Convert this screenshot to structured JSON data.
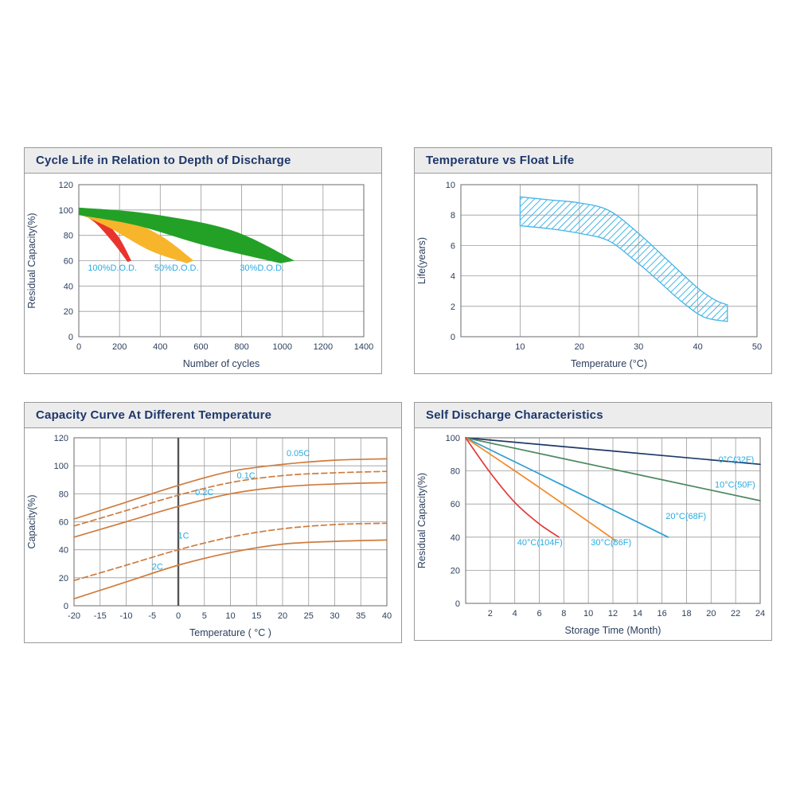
{
  "chart_data": [
    {
      "type": "area",
      "title": "Cycle Life in Relation to Depth of Discharge",
      "xlabel": "Number of cycles",
      "ylabel": "Residual Capacity(%)",
      "xlim": [
        0,
        1400
      ],
      "ylim": [
        0,
        120
      ],
      "xticks": [
        0,
        200,
        400,
        600,
        800,
        1000,
        1200,
        1400
      ],
      "yticks": [
        0,
        20,
        40,
        60,
        80,
        100,
        120
      ],
      "grid": true,
      "label_color": "#29abe2",
      "bands": [
        {
          "name": "100% D.O.D.",
          "color": "#e8342c",
          "upper": [
            [
              0,
              102
            ],
            [
              90,
              96
            ],
            [
              190,
              80
            ],
            [
              258,
              60
            ]
          ],
          "lower": [
            [
              0,
              98
            ],
            [
              80,
              90
            ],
            [
              170,
              74
            ],
            [
              240,
              59
            ]
          ]
        },
        {
          "name": "50% D.O.D.",
          "color": "#f7b52c",
          "upper": [
            [
              0,
              102
            ],
            [
              180,
              96
            ],
            [
              400,
              80
            ],
            [
              565,
              60
            ]
          ],
          "lower": [
            [
              0,
              97
            ],
            [
              150,
              86
            ],
            [
              350,
              68
            ],
            [
              530,
              58
            ]
          ]
        },
        {
          "name": "30% D.O.D.",
          "color": "#23a127",
          "upper": [
            [
              0,
              102
            ],
            [
              350,
              97
            ],
            [
              750,
              84
            ],
            [
              1060,
              60
            ]
          ],
          "lower": [
            [
              0,
              96
            ],
            [
              280,
              88
            ],
            [
              620,
              72
            ],
            [
              990,
              58
            ]
          ]
        }
      ],
      "annotations": [
        {
          "text": "100%D.O.D.",
          "x": 165,
          "y": 52
        },
        {
          "text": "50%D.O.D.",
          "x": 480,
          "y": 52
        },
        {
          "text": "30%D.O.D.",
          "x": 900,
          "y": 52
        }
      ]
    },
    {
      "type": "band",
      "title": "Temperature vs Float Life",
      "xlabel": "Temperature (°C)",
      "ylabel": "Life(years)",
      "xlim": [
        0,
        50
      ],
      "ylim": [
        0,
        10
      ],
      "xticks": [
        10,
        20,
        30,
        40,
        50
      ],
      "yticks": [
        0,
        2,
        4,
        6,
        8,
        10
      ],
      "grid": true,
      "band": {
        "color": "#45b5e8",
        "hatch": true,
        "upper": [
          [
            10,
            9.2
          ],
          [
            15,
            9.0
          ],
          [
            20,
            8.8
          ],
          [
            25,
            8.3
          ],
          [
            30,
            6.8
          ],
          [
            35,
            5.0
          ],
          [
            40,
            3.2
          ],
          [
            43,
            2.4
          ],
          [
            45,
            2.1
          ]
        ],
        "lower": [
          [
            10,
            7.3
          ],
          [
            15,
            7.1
          ],
          [
            20,
            6.8
          ],
          [
            25,
            6.3
          ],
          [
            30,
            4.8
          ],
          [
            33,
            3.8
          ],
          [
            37,
            2.4
          ],
          [
            41,
            1.3
          ],
          [
            45,
            1.0
          ]
        ]
      }
    },
    {
      "type": "line",
      "title": "Capacity Curve At Different Temperature",
      "xlabel": "Temperature ( °C )",
      "ylabel": "Capacity(%)",
      "xlim": [
        -20,
        40
      ],
      "ylim": [
        0,
        120
      ],
      "xticks": [
        -20,
        -15,
        -10,
        -5,
        0,
        5,
        10,
        15,
        20,
        25,
        30,
        35,
        40
      ],
      "yticks": [
        0,
        20,
        40,
        60,
        80,
        100,
        120
      ],
      "grid": true,
      "emphasis_x": 0,
      "label_color": "#29abe2",
      "series": [
        {
          "name": "0.05C",
          "color": "#cf7c3e",
          "dash": false,
          "points": [
            [
              -20,
              62
            ],
            [
              -10,
              74
            ],
            [
              0,
              86
            ],
            [
              10,
              96
            ],
            [
              20,
              101
            ],
            [
              30,
              104
            ],
            [
              40,
              105
            ]
          ]
        },
        {
          "name": "0.1C",
          "color": "#cf7c3e",
          "dash": true,
          "points": [
            [
              -20,
              57
            ],
            [
              -10,
              68
            ],
            [
              0,
              79
            ],
            [
              10,
              88
            ],
            [
              20,
              93
            ],
            [
              30,
              95
            ],
            [
              40,
              96
            ]
          ]
        },
        {
          "name": "0.2C",
          "color": "#cf7c3e",
          "dash": false,
          "points": [
            [
              -20,
              49
            ],
            [
              -10,
              60
            ],
            [
              0,
              71
            ],
            [
              10,
              80
            ],
            [
              20,
              85
            ],
            [
              30,
              87
            ],
            [
              40,
              88
            ]
          ]
        },
        {
          "name": "1C",
          "color": "#cf7c3e",
          "dash": true,
          "points": [
            [
              -20,
              18
            ],
            [
              -10,
              29
            ],
            [
              0,
              40
            ],
            [
              10,
              49
            ],
            [
              20,
              55
            ],
            [
              30,
              58
            ],
            [
              40,
              59
            ]
          ]
        },
        {
          "name": "2C",
          "color": "#cf7c3e",
          "dash": false,
          "points": [
            [
              -20,
              5
            ],
            [
              -10,
              17
            ],
            [
              0,
              29
            ],
            [
              10,
              38
            ],
            [
              20,
              44
            ],
            [
              30,
              46
            ],
            [
              40,
              47
            ]
          ]
        }
      ],
      "annotations": [
        {
          "text": "0.05C",
          "x": 23,
          "y": 107
        },
        {
          "text": "0.1C",
          "x": 13,
          "y": 91
        },
        {
          "text": "0.2C",
          "x": 5,
          "y": 79
        },
        {
          "text": "1C",
          "x": 1,
          "y": 48
        },
        {
          "text": "2C",
          "x": -4,
          "y": 26
        }
      ]
    },
    {
      "type": "line",
      "title": "Self Discharge Characteristics",
      "xlabel": "Storage Time (Month)",
      "ylabel": "Residual Capacity(%)",
      "xlim": [
        0,
        24
      ],
      "ylim": [
        0,
        100
      ],
      "xticks": [
        2,
        4,
        6,
        8,
        10,
        12,
        14,
        16,
        18,
        20,
        22,
        24
      ],
      "yticks": [
        0,
        20,
        40,
        60,
        80,
        100
      ],
      "grid": true,
      "label_color": "#29abe2",
      "series": [
        {
          "name": "0°C(32F)",
          "color": "#1e3a66",
          "dash": false,
          "points": [
            [
              0,
              100
            ],
            [
              12,
              92
            ],
            [
              24,
              84
            ]
          ]
        },
        {
          "name": "10°C(50F)",
          "color": "#4e8a62",
          "dash": false,
          "points": [
            [
              0,
              100
            ],
            [
              12,
              81
            ],
            [
              24,
              62
            ]
          ]
        },
        {
          "name": "20°C(68F)",
          "color": "#2e9fd4",
          "dash": false,
          "points": [
            [
              0,
              100
            ],
            [
              8,
              71
            ],
            [
              16.5,
              40
            ]
          ]
        },
        {
          "name": "30°C(86F)",
          "color": "#ef8b2c",
          "dash": false,
          "points": [
            [
              0,
              100
            ],
            [
              6,
              70
            ],
            [
              12.2,
              38
            ]
          ]
        },
        {
          "name": "40°C(104F)",
          "color": "#e23b3b",
          "dash": false,
          "points": [
            [
              0,
              100
            ],
            [
              2,
              79
            ],
            [
              4,
              61
            ],
            [
              6,
              48
            ],
            [
              7.6,
              40
            ]
          ]
        }
      ],
      "annotations": [
        {
          "text": "0°C(32F)",
          "x": 20.6,
          "y": 85,
          "anchor": "start"
        },
        {
          "text": "10°C(50F)",
          "x": 20.3,
          "y": 70,
          "anchor": "start"
        },
        {
          "text": "20°C(68F)",
          "x": 16.3,
          "y": 51,
          "anchor": "start"
        },
        {
          "text": "30°C(86F)",
          "x": 10.2,
          "y": 35,
          "anchor": "start"
        },
        {
          "text": "40°C(104F)",
          "x": 4.2,
          "y": 35,
          "anchor": "start"
        }
      ]
    }
  ]
}
